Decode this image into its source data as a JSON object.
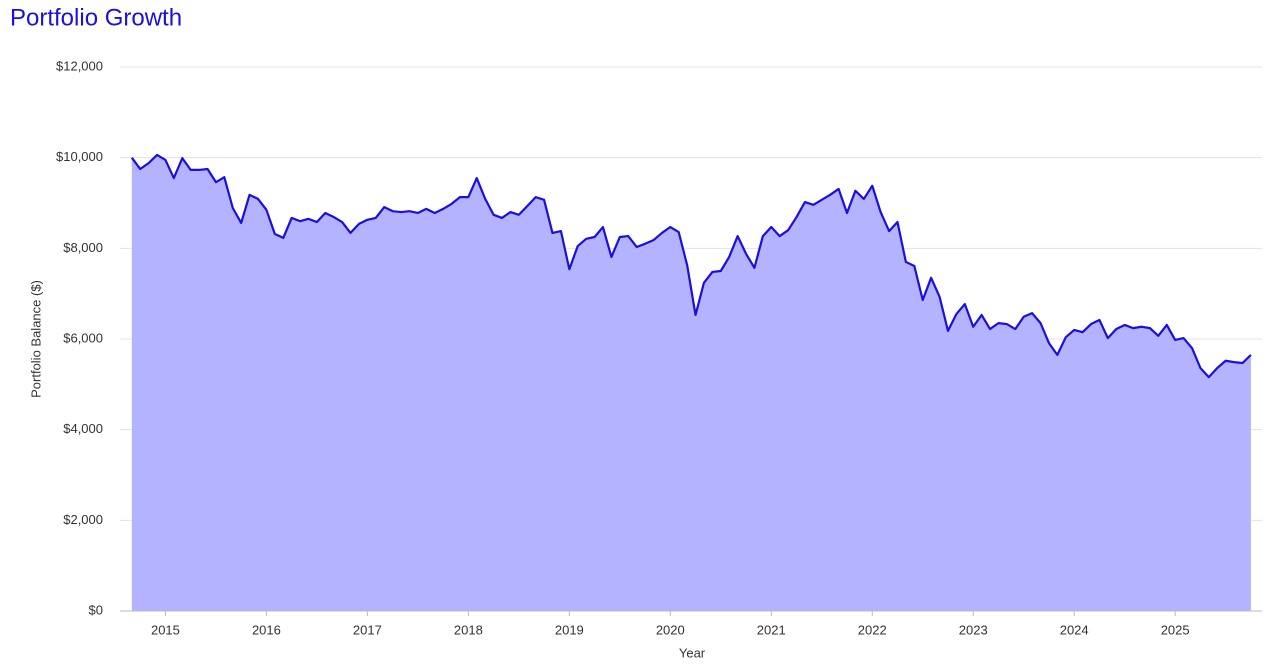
{
  "chart_data": {
    "type": "area",
    "title": "Portfolio Growth",
    "x_label": "Year",
    "y_label": "Portfolio Balance ($)",
    "color": "#1a0fe0",
    "fill_color": "#b3b3ff",
    "title_color": "#1a0fe0",
    "grid": true,
    "xlim": [
      2014.55,
      2025.86
    ],
    "xticks": [
      2015,
      2016,
      2017,
      2018,
      2019,
      2020,
      2021,
      2022,
      2023,
      2024,
      2025
    ],
    "ylim": [
      0,
      12000
    ],
    "yticks": [
      {
        "value": 0,
        "label": "$0"
      },
      {
        "value": 2000,
        "label": "$2,000"
      },
      {
        "value": 4000,
        "label": "$4,000"
      },
      {
        "value": 6000,
        "label": "$6,000"
      },
      {
        "value": 8000,
        "label": "$8,000"
      },
      {
        "value": 10000,
        "label": "$10,000"
      },
      {
        "value": 12000,
        "label": "$12,000"
      }
    ],
    "x": [
      2014.667,
      2014.75,
      2014.833,
      2014.917,
      2015,
      2015.083,
      2015.167,
      2015.25,
      2015.333,
      2015.417,
      2015.5,
      2015.583,
      2015.667,
      2015.75,
      2015.833,
      2015.917,
      2016,
      2016.083,
      2016.167,
      2016.25,
      2016.333,
      2016.417,
      2016.5,
      2016.583,
      2016.667,
      2016.75,
      2016.833,
      2016.917,
      2017,
      2017.083,
      2017.167,
      2017.25,
      2017.333,
      2017.417,
      2017.5,
      2017.583,
      2017.667,
      2017.75,
      2017.833,
      2017.917,
      2018,
      2018.083,
      2018.167,
      2018.25,
      2018.333,
      2018.417,
      2018.5,
      2018.583,
      2018.667,
      2018.75,
      2018.833,
      2018.917,
      2019,
      2019.083,
      2019.167,
      2019.25,
      2019.333,
      2019.417,
      2019.5,
      2019.583,
      2019.667,
      2019.75,
      2019.833,
      2019.917,
      2020,
      2020.083,
      2020.167,
      2020.25,
      2020.333,
      2020.417,
      2020.5,
      2020.583,
      2020.667,
      2020.75,
      2020.833,
      2020.917,
      2021,
      2021.083,
      2021.167,
      2021.25,
      2021.333,
      2021.417,
      2021.5,
      2021.583,
      2021.667,
      2021.75,
      2021.833,
      2021.917,
      2022,
      2022.083,
      2022.167,
      2022.25,
      2022.333,
      2022.417,
      2022.5,
      2022.583,
      2022.667,
      2022.75,
      2022.833,
      2022.917,
      2023,
      2023.083,
      2023.167,
      2023.25,
      2023.333,
      2023.417,
      2023.5,
      2023.583,
      2023.667,
      2023.75,
      2023.833,
      2023.917,
      2024,
      2024.083,
      2024.167,
      2024.25,
      2024.333,
      2024.417,
      2024.5,
      2024.583,
      2024.667,
      2024.75,
      2024.833,
      2024.917,
      2025,
      2025.083,
      2025.167,
      2025.25,
      2025.333,
      2025.417,
      2025.5,
      2025.583,
      2025.667,
      2025.75
    ],
    "values": [
      10000,
      9750,
      9880,
      10060,
      9950,
      9550,
      9990,
      9730,
      9730,
      9750,
      9460,
      9570,
      8890,
      8560,
      9180,
      9090,
      8850,
      8320,
      8230,
      8670,
      8600,
      8650,
      8580,
      8780,
      8690,
      8580,
      8340,
      8540,
      8630,
      8670,
      8910,
      8820,
      8800,
      8820,
      8780,
      8870,
      8780,
      8870,
      8980,
      9130,
      9130,
      9550,
      9090,
      8740,
      8670,
      8800,
      8740,
      8930,
      9130,
      9070,
      8340,
      8380,
      7540,
      8050,
      8210,
      8250,
      8470,
      7810,
      8250,
      8270,
      8030,
      8100,
      8180,
      8340,
      8470,
      8360,
      7630,
      6530,
      7240,
      7480,
      7500,
      7810,
      8270,
      7880,
      7570,
      8270,
      8470,
      8270,
      8400,
      8690,
      9020,
      8960,
      9070,
      9180,
      9310,
      8780,
      9270,
      9090,
      9380,
      8800,
      8380,
      8580,
      7700,
      7610,
      6860,
      7350,
      6930,
      6180,
      6550,
      6770,
      6270,
      6530,
      6220,
      6350,
      6330,
      6220,
      6490,
      6570,
      6350,
      5910,
      5650,
      6040,
      6200,
      6150,
      6330,
      6420,
      6020,
      6220,
      6310,
      6240,
      6270,
      6240,
      6070,
      6310,
      5980,
      6020,
      5800,
      5360,
      5160,
      5360,
      5520,
      5490,
      5470,
      5650
    ]
  }
}
